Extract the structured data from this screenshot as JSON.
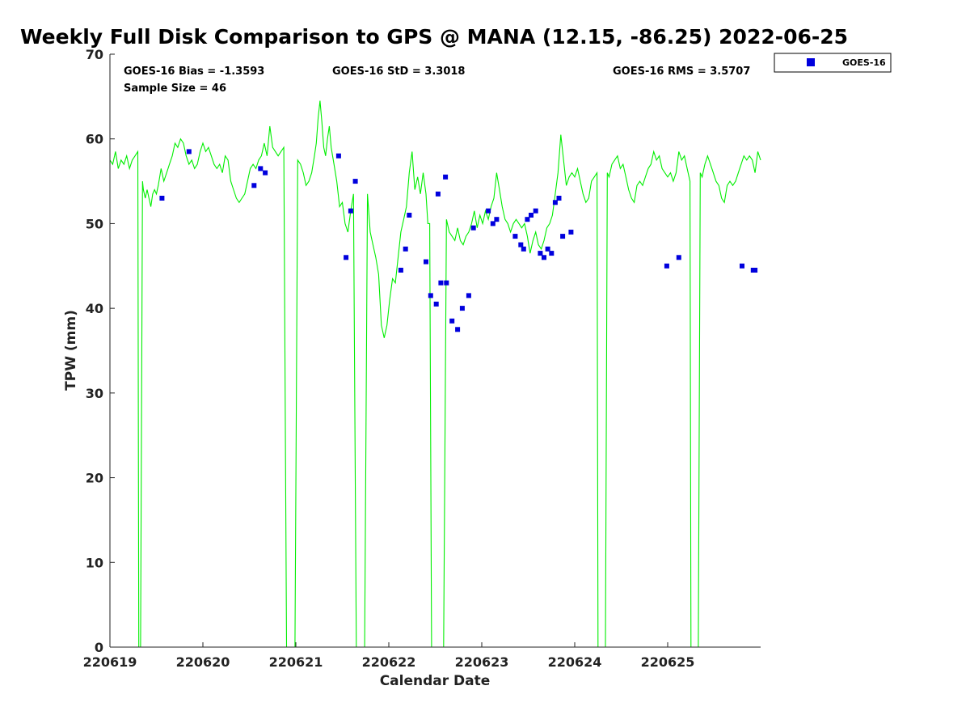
{
  "chart_data": {
    "type": "line",
    "title": "Weekly Full Disk Comparison to GPS @ MANA (12.15, -86.25) 2022-06-25",
    "xlabel": "Calendar Date",
    "ylabel": "TPW (mm)",
    "xlim": [
      0,
      7
    ],
    "ylim": [
      0,
      70
    ],
    "x_ticks": [
      0,
      1,
      2,
      3,
      4,
      5,
      6
    ],
    "x_tick_labels": [
      "220619",
      "220620",
      "220621",
      "220622",
      "220623",
      "220624",
      "220625"
    ],
    "y_ticks": [
      0,
      10,
      20,
      30,
      40,
      50,
      60,
      70
    ],
    "y_tick_labels": [
      "0",
      "10",
      "20",
      "30",
      "40",
      "50",
      "60",
      "70"
    ],
    "grid": false,
    "legend_position": "top-right-outside",
    "stats": {
      "bias": "GOES-16 Bias = -1.3593",
      "std": "GOES-16 StD = 3.3018",
      "rms": "GOES-16 RMS = 3.5707",
      "sample": "Sample Size = 46"
    },
    "series": [
      {
        "name": "GPS",
        "style": "line",
        "color": "#00ee00",
        "x": [
          0.0,
          0.03,
          0.06,
          0.09,
          0.12,
          0.15,
          0.18,
          0.21,
          0.24,
          0.27,
          0.3,
          0.31,
          0.33,
          0.35,
          0.36,
          0.38,
          0.4,
          0.42,
          0.44,
          0.46,
          0.48,
          0.5,
          0.52,
          0.55,
          0.58,
          0.61,
          0.64,
          0.67,
          0.7,
          0.73,
          0.76,
          0.79,
          0.82,
          0.85,
          0.88,
          0.91,
          0.94,
          0.97,
          1.0,
          1.03,
          1.06,
          1.09,
          1.12,
          1.15,
          1.18,
          1.21,
          1.24,
          1.27,
          1.3,
          1.33,
          1.36,
          1.39,
          1.42,
          1.45,
          1.48,
          1.51,
          1.54,
          1.57,
          1.6,
          1.63,
          1.66,
          1.69,
          1.72,
          1.75,
          1.78,
          1.81,
          1.84,
          1.87,
          1.9,
          1.93,
          1.96,
          1.99,
          2.02,
          2.05,
          2.08,
          2.11,
          2.14,
          2.17,
          2.2,
          2.22,
          2.24,
          2.26,
          2.28,
          2.3,
          2.32,
          2.34,
          2.36,
          2.38,
          2.41,
          2.44,
          2.47,
          2.5,
          2.53,
          2.56,
          2.59,
          2.62,
          2.65,
          2.68,
          2.71,
          2.74,
          2.77,
          2.8,
          2.83,
          2.86,
          2.89,
          2.92,
          2.95,
          2.98,
          3.01,
          3.04,
          3.07,
          3.1,
          3.13,
          3.16,
          3.19,
          3.22,
          3.25,
          3.28,
          3.31,
          3.34,
          3.37,
          3.4,
          3.42,
          3.44,
          3.46,
          3.48,
          3.5,
          3.53,
          3.56,
          3.59,
          3.62,
          3.65,
          3.68,
          3.71,
          3.74,
          3.77,
          3.8,
          3.83,
          3.86,
          3.89,
          3.92,
          3.95,
          3.98,
          4.01,
          4.04,
          4.07,
          4.1,
          4.13,
          4.16,
          4.19,
          4.22,
          4.25,
          4.28,
          4.31,
          4.34,
          4.37,
          4.4,
          4.43,
          4.46,
          4.49,
          4.52,
          4.55,
          4.58,
          4.61,
          4.64,
          4.67,
          4.7,
          4.73,
          4.76,
          4.79,
          4.82,
          4.85,
          4.88,
          4.91,
          4.94,
          4.97,
          5.0,
          5.03,
          5.06,
          5.09,
          5.12,
          5.15,
          5.18,
          5.21,
          5.24,
          5.25,
          5.27,
          5.29,
          5.31,
          5.33,
          5.35,
          5.37,
          5.4,
          5.43,
          5.46,
          5.49,
          5.52,
          5.55,
          5.58,
          5.61,
          5.64,
          5.67,
          5.7,
          5.73,
          5.76,
          5.79,
          5.82,
          5.85,
          5.88,
          5.91,
          5.94,
          5.97,
          6.0,
          6.03,
          6.06,
          6.09,
          6.12,
          6.15,
          6.18,
          6.21,
          6.24,
          6.25,
          6.27,
          6.29,
          6.31,
          6.33,
          6.35,
          6.37,
          6.4,
          6.43,
          6.46,
          6.49,
          6.52,
          6.55,
          6.58,
          6.61,
          6.64,
          6.67,
          6.7,
          6.73,
          6.76,
          6.79,
          6.82,
          6.85,
          6.88,
          6.91,
          6.94,
          6.97,
          7.0
        ],
        "y": [
          57.5,
          57.0,
          58.5,
          56.5,
          57.5,
          57.0,
          58.0,
          56.5,
          57.5,
          58.0,
          58.5,
          0,
          0,
          55.0,
          54.0,
          53.0,
          54.0,
          53.0,
          52.0,
          53.5,
          54.0,
          53.5,
          54.5,
          56.5,
          55.0,
          56.0,
          57.0,
          58.0,
          59.5,
          59.0,
          60.0,
          59.5,
          58.0,
          57.0,
          57.5,
          56.5,
          57.0,
          58.5,
          59.5,
          58.5,
          59.0,
          58.0,
          57.0,
          56.5,
          57.0,
          56.0,
          58.0,
          57.5,
          55.0,
          54.0,
          53.0,
          52.5,
          53.0,
          53.5,
          55.0,
          56.5,
          57.0,
          56.5,
          57.5,
          58.0,
          59.5,
          58.0,
          61.5,
          59.0,
          58.5,
          58.0,
          58.5,
          59.0,
          0,
          0,
          0,
          0,
          57.5,
          57.0,
          56.0,
          54.5,
          55.0,
          56.0,
          58.0,
          59.5,
          62.5,
          64.5,
          62.0,
          59.0,
          58.0,
          60.0,
          61.5,
          59.0,
          57.0,
          55.0,
          52.0,
          52.5,
          50.0,
          49.0,
          51.5,
          53.5,
          0,
          0,
          0,
          0,
          53.5,
          49.0,
          47.5,
          46.0,
          44.0,
          38.0,
          36.5,
          38.0,
          41.0,
          43.5,
          43.0,
          46.0,
          49.0,
          50.5,
          52.0,
          56.0,
          58.5,
          54.0,
          55.5,
          53.5,
          56.0,
          53.5,
          50.0,
          50.0,
          0,
          0,
          0,
          0,
          0,
          0,
          50.5,
          49.0,
          48.5,
          48.0,
          49.5,
          48.0,
          47.5,
          48.5,
          49.0,
          50.0,
          51.5,
          49.5,
          51.0,
          50.0,
          51.5,
          50.5,
          52.0,
          53.0,
          56.0,
          54.0,
          52.0,
          50.5,
          50.0,
          49.0,
          50.0,
          50.5,
          50.0,
          49.5,
          50.0,
          48.5,
          46.5,
          48.0,
          49.0,
          47.5,
          47.0,
          48.0,
          49.5,
          50.0,
          51.0,
          53.5,
          56.0,
          60.5,
          57.5,
          54.5,
          55.5,
          56.0,
          55.5,
          56.5,
          55.0,
          53.5,
          52.5,
          53.0,
          55.0,
          55.5,
          56.0,
          0,
          0,
          0,
          0,
          0,
          56.0,
          55.5,
          57.0,
          57.5,
          58.0,
          56.5,
          57.0,
          55.5,
          54.0,
          53.0,
          52.5,
          54.5,
          55.0,
          54.5,
          55.5,
          56.5,
          57.0,
          58.5,
          57.5,
          58.0,
          56.5,
          56.0,
          55.5,
          56.0,
          55.0,
          56.0,
          58.5,
          57.5,
          58.0,
          56.5,
          55.0,
          0,
          0,
          0,
          0,
          0,
          56.0,
          55.5,
          57.0,
          58.0,
          57.0,
          56.0,
          55.0,
          54.5,
          53.0,
          52.5,
          54.5,
          55.0,
          54.5,
          55.0,
          56.0,
          57.0,
          58.0,
          57.5,
          58.0,
          57.5,
          56.0,
          58.5,
          57.5
        ]
      },
      {
        "name": "GOES-16",
        "style": "marker",
        "color": "#0000dd",
        "x": [
          0.56,
          0.85,
          1.55,
          1.62,
          1.67,
          2.46,
          3.4,
          3.45,
          3.51,
          3.56,
          3.62,
          3.68,
          3.74,
          3.79,
          3.86,
          3.91,
          4.36,
          4.42,
          4.45,
          4.49,
          4.53,
          4.58,
          4.63,
          4.67,
          4.71,
          4.75,
          4.79,
          4.83,
          4.87,
          4.96,
          5.99,
          6.12,
          6.8,
          6.94,
          6.92,
          3.13,
          3.18,
          3.22,
          3.53,
          4.07,
          4.12,
          4.16,
          3.61,
          2.64,
          2.59,
          2.54
        ],
        "y": [
          53.0,
          58.5,
          54.5,
          56.5,
          56.0,
          58.0,
          45.5,
          41.5,
          40.5,
          43.0,
          43.0,
          38.5,
          37.5,
          40.0,
          41.5,
          49.5,
          48.5,
          47.5,
          47.0,
          50.5,
          51.0,
          51.5,
          46.5,
          46.0,
          47.0,
          46.5,
          52.5,
          53.0,
          48.5,
          49.0,
          45.0,
          46.0,
          45.0,
          44.5,
          44.5,
          44.5,
          47.0,
          51.0,
          53.5,
          51.5,
          50.0,
          50.5,
          55.5,
          55.0,
          51.5,
          46.0
        ]
      }
    ]
  },
  "legend": {
    "label": "GOES-16",
    "marker_color": "#0000dd"
  }
}
